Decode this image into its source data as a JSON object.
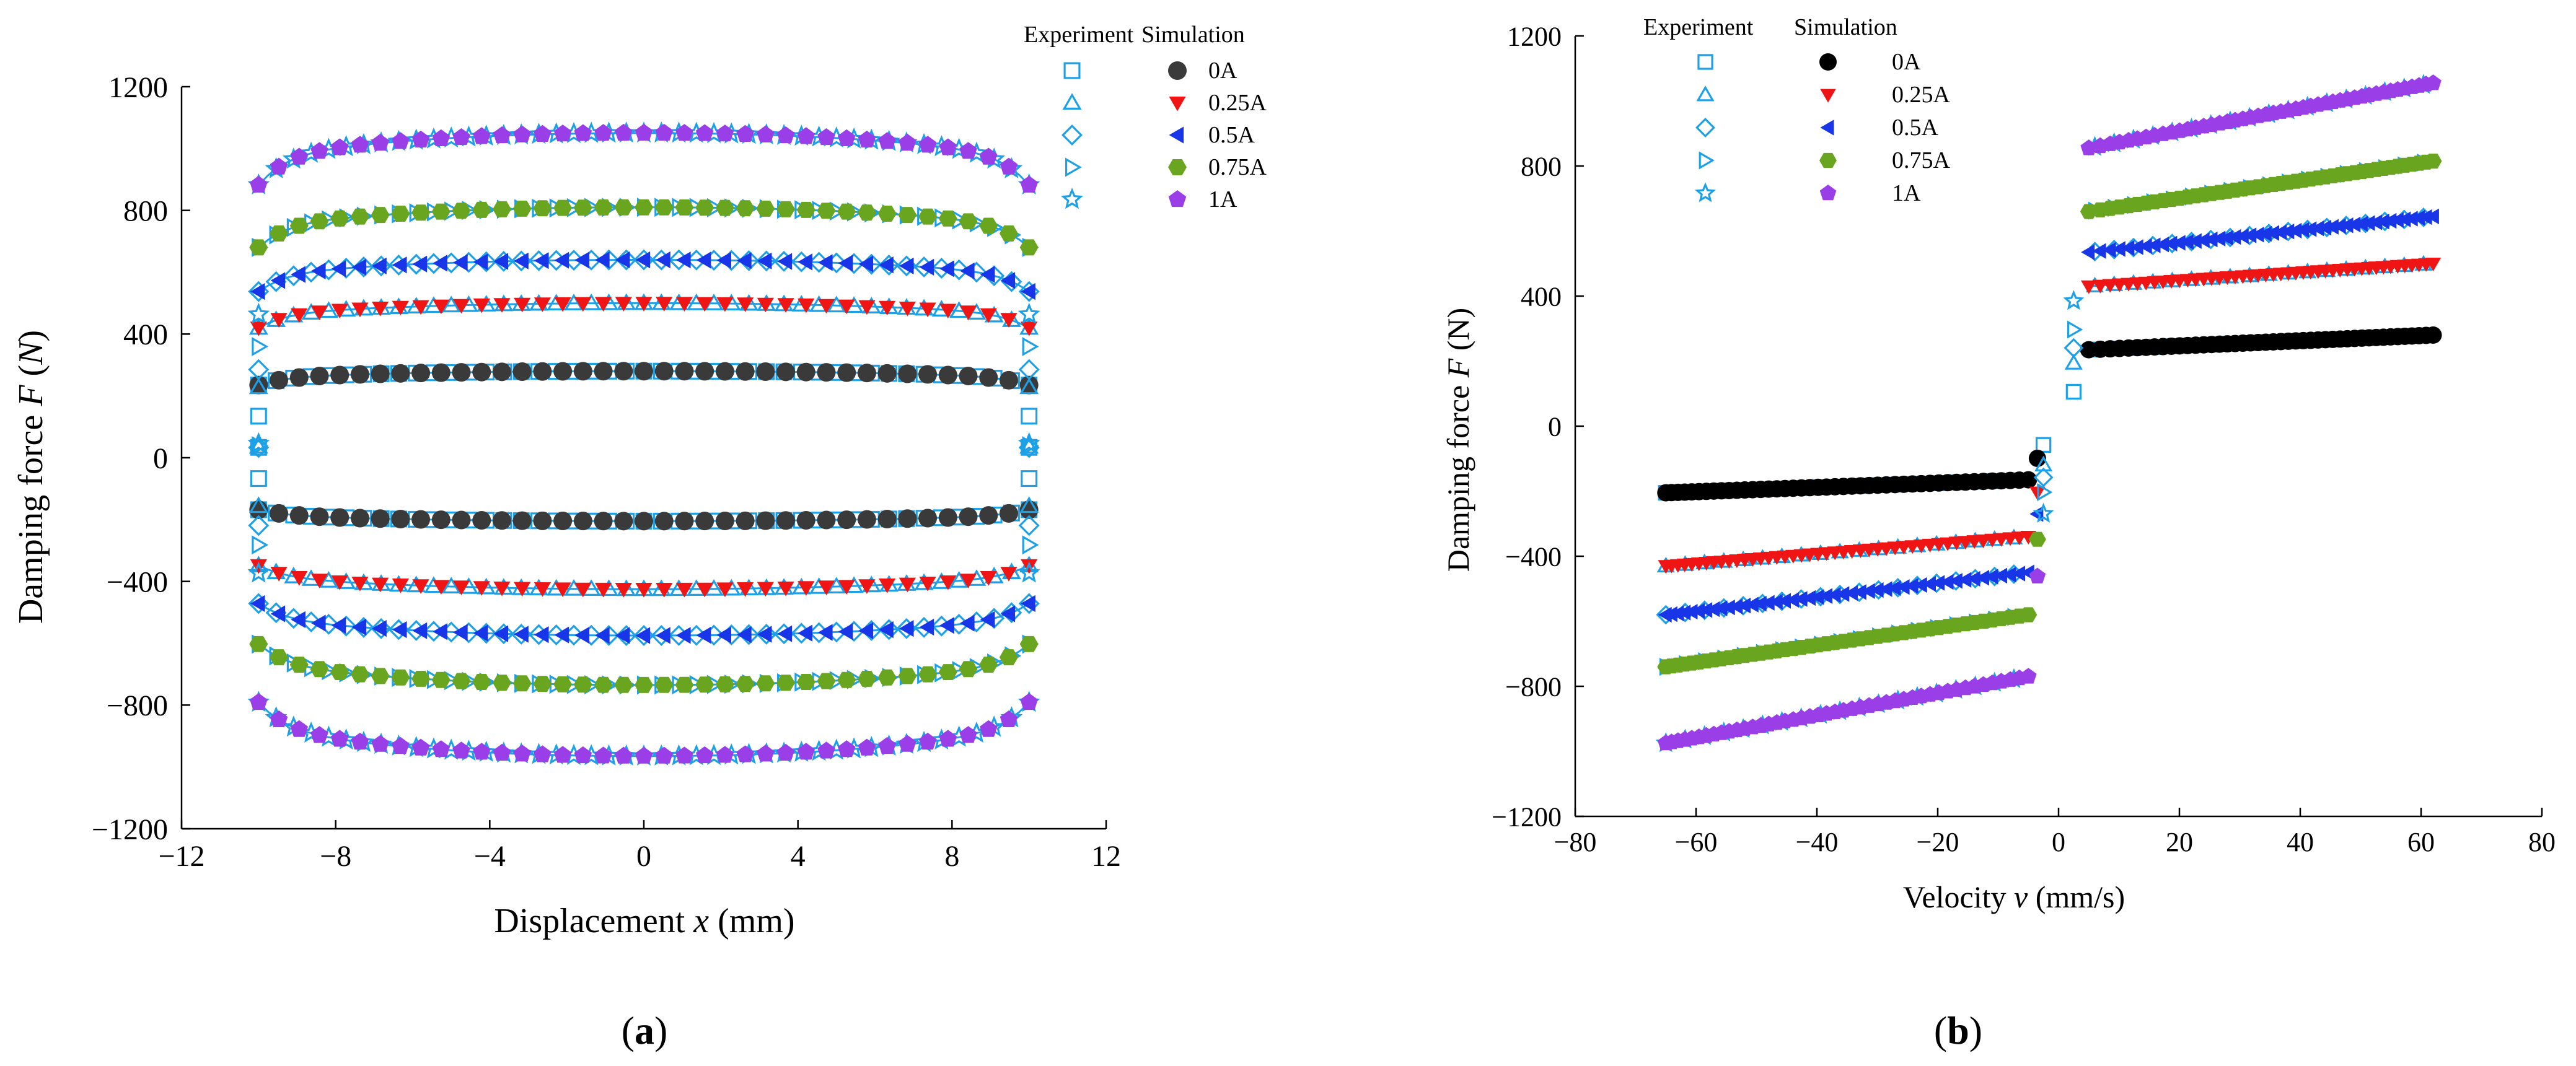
{
  "colors": {
    "experiment": "#1ea0e6",
    "axis": "#000000",
    "sim_0A": "#3a3a3a",
    "sim_0_25A": "#f01515",
    "sim_0_5A": "#1836e8",
    "sim_0_75A": "#6aa520",
    "sim_1A": "#9a3ee8",
    "sim_0A_b": "#000000"
  },
  "chart_data": [
    {
      "type": "scatter",
      "panel_label": "(a)",
      "panel_label_parts": [
        "(",
        "a",
        ")"
      ],
      "xlabel": "Displacement  x (mm)",
      "xlabel_parts": [
        "Displacement",
        "x",
        "(mm)"
      ],
      "ylabel": "Damping force F (N)",
      "ylabel_parts": [
        "Damping force",
        "F",
        "(",
        "N",
        ")"
      ],
      "xlim": [
        -12,
        12
      ],
      "ylim": [
        -1200,
        1200
      ],
      "xticks": [
        -12,
        -8,
        -4,
        0,
        4,
        8,
        12
      ],
      "yticks": [
        -1200,
        -800,
        -400,
        0,
        400,
        800,
        1200
      ],
      "xtick_labels": [
        "−12",
        "−8",
        "−4",
        "0",
        "4",
        "8",
        "12"
      ],
      "ytick_labels": [
        "−1200",
        "−800",
        "−400",
        "0",
        "400",
        "800",
        "1200"
      ],
      "legend": {
        "placement": "top-right",
        "header_experiment": "Experiment",
        "header_simulation": "Simulation",
        "labels": [
          "0A",
          "0.25A",
          "0.5A",
          "0.75A",
          "1A"
        ]
      },
      "x_range": [
        -10,
        10
      ],
      "series": [
        {
          "current": "0A",
          "upper_peak": 280,
          "lower_peak": -205,
          "exp_marker": "square",
          "sim_marker": "circle"
        },
        {
          "current": "0.25A",
          "upper_peak": 500,
          "lower_peak": -425,
          "exp_marker": "triangle-up",
          "sim_marker": "triangle-down"
        },
        {
          "current": "0.5A",
          "upper_peak": 640,
          "lower_peak": -575,
          "exp_marker": "diamond",
          "sim_marker": "triangle-left"
        },
        {
          "current": "0.75A",
          "upper_peak": 810,
          "lower_peak": -735,
          "exp_marker": "triangle-right",
          "sim_marker": "hexagon"
        },
        {
          "current": "1A",
          "upper_peak": 1050,
          "lower_peak": -965,
          "exp_marker": "star",
          "sim_marker": "pentagon"
        }
      ]
    },
    {
      "type": "scatter",
      "panel_label": "(b)",
      "panel_label_parts": [
        "(",
        "b",
        ")"
      ],
      "xlabel": "Velocity  v (mm/s)",
      "xlabel_parts": [
        "Velocity",
        "v",
        "(mm/s)"
      ],
      "ylabel": "Damping force F (N)",
      "ylabel_parts": [
        "Damping force",
        "F",
        "(N)"
      ],
      "xlim": [
        -80,
        80
      ],
      "ylim": [
        -1200,
        1200
      ],
      "xticks": [
        -80,
        -60,
        -40,
        -20,
        0,
        20,
        40,
        60,
        80
      ],
      "yticks": [
        -1200,
        -800,
        -400,
        0,
        400,
        800,
        1200
      ],
      "xtick_labels": [
        "−80",
        "−60",
        "−40",
        "−20",
        "0",
        "20",
        "40",
        "60",
        "80"
      ],
      "ytick_labels": [
        "−1200",
        "−800",
        "−400",
        "0",
        "400",
        "800",
        "1200"
      ],
      "legend": {
        "placement": "top-left",
        "header_experiment": "Experiment",
        "header_simulation": "Simulation",
        "labels": [
          "0A",
          "0.25A",
          "0.5A",
          "0.75A",
          "1A"
        ]
      },
      "v_range": [
        -65,
        62
      ],
      "series": [
        {
          "current": "0A",
          "pos_start": 235,
          "pos_end": 280,
          "neg_start": -205,
          "neg_end": -165
        },
        {
          "current": "0.25A",
          "pos_start": 430,
          "pos_end": 500,
          "neg_start": -430,
          "neg_end": -340
        },
        {
          "current": "0.5A",
          "pos_start": 535,
          "pos_end": 645,
          "neg_start": -580,
          "neg_end": -450
        },
        {
          "current": "0.75A",
          "pos_start": 660,
          "pos_end": 815,
          "neg_start": -740,
          "neg_end": -580
        },
        {
          "current": "1A",
          "pos_start": 855,
          "pos_end": 1055,
          "neg_start": -975,
          "neg_end": -770
        }
      ]
    }
  ]
}
